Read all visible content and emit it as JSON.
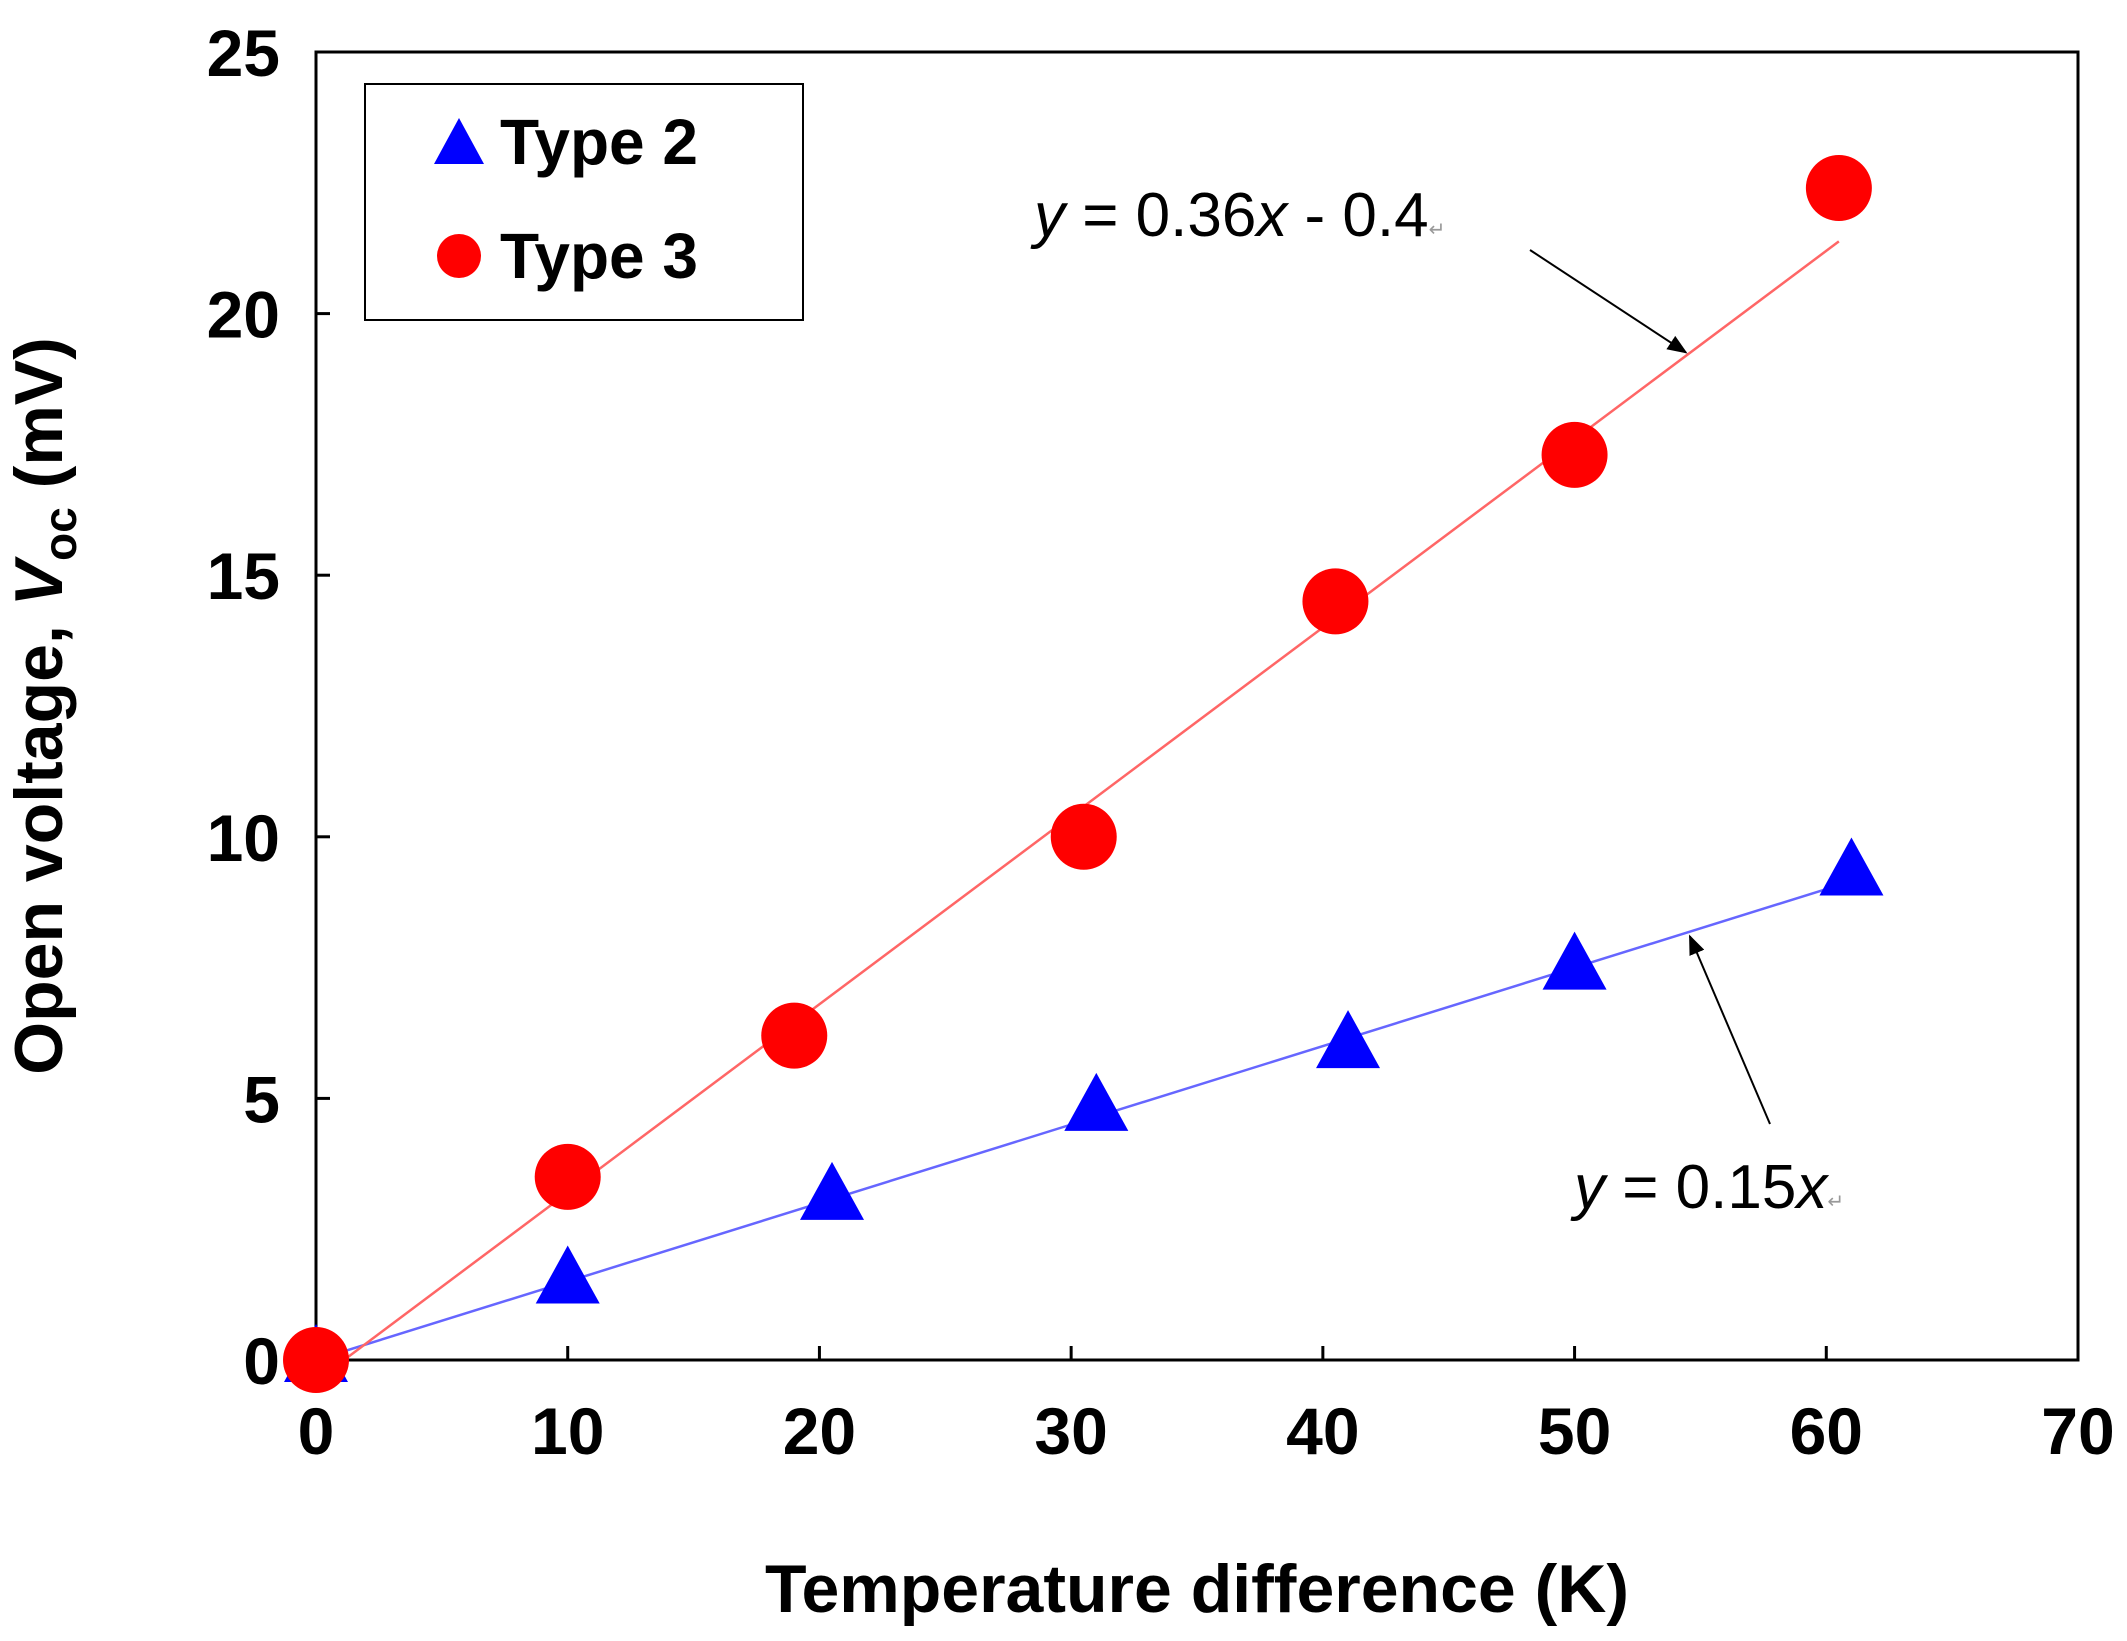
{
  "chart_data": {
    "type": "scatter",
    "title": "",
    "xlabel": "Temperature difference (K)",
    "ylabel": {
      "prefix": "Open voltage, ",
      "symbol": "V",
      "subscript": "oc",
      "suffix": " (mV)"
    },
    "xlim": [
      0,
      70
    ],
    "ylim": [
      0,
      25
    ],
    "xticks": [
      "0",
      "10",
      "20",
      "30",
      "40",
      "50",
      "60",
      "70"
    ],
    "yticks": [
      "0",
      "5",
      "10",
      "15",
      "20",
      "25"
    ],
    "grid": false,
    "legend_position": "top-left",
    "series": [
      {
        "name": "Type 2",
        "marker": "triangle",
        "color": "#0000ff",
        "x": [
          0,
          10,
          20.5,
          31,
          41,
          50,
          61
        ],
        "y": [
          0,
          1.5,
          3.1,
          4.8,
          6.0,
          7.5,
          9.3
        ],
        "fit": {
          "slope": 0.15,
          "intercept": 0,
          "x_range": [
            0,
            61
          ],
          "line_color": "#6666ff",
          "label": {
            "y": "y",
            "rest": " = 0.15",
            "x": "x",
            "tail": ""
          }
        }
      },
      {
        "name": "Type 3",
        "marker": "circle",
        "color": "#ff0000",
        "x": [
          0,
          10,
          19,
          30.5,
          40.5,
          50,
          60.5
        ],
        "y": [
          0,
          3.5,
          6.2,
          10.0,
          14.5,
          17.3,
          22.4
        ],
        "fit": {
          "slope": 0.36,
          "intercept": -0.4,
          "x_range": [
            1,
            60.5
          ],
          "line_color": "#ff6666",
          "label": {
            "y": "y",
            "rest": " = 0.36",
            "x": "x",
            "tail": " - 0.4"
          }
        }
      }
    ]
  }
}
